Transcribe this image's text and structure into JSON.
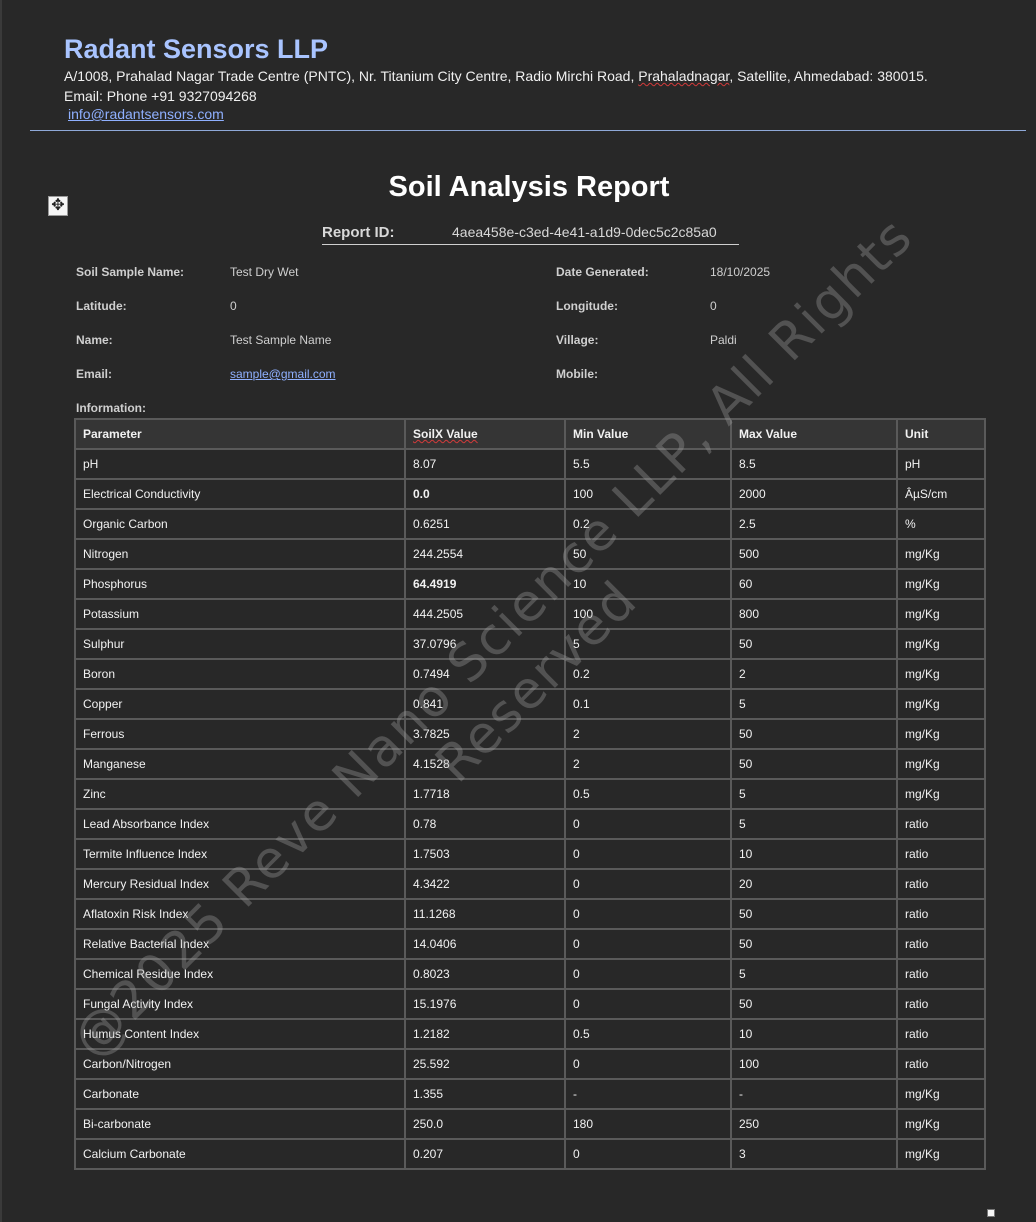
{
  "company": {
    "name": "Radant Sensors LLP",
    "address_pre": "A/1008, Prahalad Nagar Trade Centre (PNTC), Nr. Titanium City Centre, Radio Mirchi Road, ",
    "address_flagged": "Prahaladnagar",
    "address_post": ", Satellite, Ahmedabad: 380015.",
    "contact": "Email: Phone +91 9327094268",
    "email": "info@radantsensors.com"
  },
  "report": {
    "title": "Soil Analysis Report",
    "id_label": "Report ID:",
    "id_value": "4aea458e-c3ed-4e41-a1d9-0dec5c2c85a0"
  },
  "meta": {
    "sample_name_label": "Soil Sample Name:",
    "sample_name": "Test Dry Wet",
    "date_label": "Date Generated:",
    "date": "18/10/2025",
    "latitude_label": "Latitude:",
    "latitude": "0",
    "longitude_label": "Longitude:",
    "longitude": "0",
    "name_label": "Name:",
    "name": "Test Sample Name",
    "village_label": "Village:",
    "village": "Paldi",
    "email_label": "Email:",
    "email": "sample@gmail.com",
    "mobile_label": "Mobile:",
    "information_label": "Information:"
  },
  "table": {
    "headers": [
      "Parameter",
      "SoilX Value",
      "Min Value",
      "Max Value",
      "Unit"
    ],
    "rows": [
      {
        "parameter": "pH",
        "value": "8.07",
        "min": "5.5",
        "max": "8.5",
        "unit": "pH",
        "flag": false
      },
      {
        "parameter": "Electrical Conductivity",
        "value": "0.0",
        "min": "100",
        "max": "2000",
        "unit": "ÂµS/cm",
        "flag": true
      },
      {
        "parameter": "Organic Carbon",
        "value": "0.6251",
        "min": "0.2",
        "max": "2.5",
        "unit": "%",
        "flag": false
      },
      {
        "parameter": "Nitrogen",
        "value": "244.2554",
        "min": "50",
        "max": "500",
        "unit": "mg/Kg",
        "flag": false
      },
      {
        "parameter": "Phosphorus",
        "value": "64.4919",
        "min": "10",
        "max": "60",
        "unit": "mg/Kg",
        "flag": true
      },
      {
        "parameter": "Potassium",
        "value": "444.2505",
        "min": "100",
        "max": "800",
        "unit": "mg/Kg",
        "flag": false
      },
      {
        "parameter": "Sulphur",
        "value": "37.0796",
        "min": "5",
        "max": "50",
        "unit": "mg/Kg",
        "flag": false
      },
      {
        "parameter": "Boron",
        "value": "0.7494",
        "min": "0.2",
        "max": "2",
        "unit": "mg/Kg",
        "flag": false
      },
      {
        "parameter": "Copper",
        "value": "0.841",
        "min": "0.1",
        "max": "5",
        "unit": "mg/Kg",
        "flag": false
      },
      {
        "parameter": "Ferrous",
        "value": "3.7825",
        "min": "2",
        "max": "50",
        "unit": "mg/Kg",
        "flag": false
      },
      {
        "parameter": "Manganese",
        "value": "4.1528",
        "min": "2",
        "max": "50",
        "unit": "mg/Kg",
        "flag": false
      },
      {
        "parameter": "Zinc",
        "value": "1.7718",
        "min": "0.5",
        "max": "5",
        "unit": "mg/Kg",
        "flag": false
      },
      {
        "parameter": "Lead Absorbance Index",
        "value": "0.78",
        "min": "0",
        "max": "5",
        "unit": "ratio",
        "flag": false
      },
      {
        "parameter": "Termite Influence Index",
        "value": "1.7503",
        "min": "0",
        "max": "10",
        "unit": "ratio",
        "flag": false
      },
      {
        "parameter": "Mercury Residual Index",
        "value": "4.3422",
        "min": "0",
        "max": "20",
        "unit": "ratio",
        "flag": false
      },
      {
        "parameter": "Aflatoxin Risk Index",
        "value": "11.1268",
        "min": "0",
        "max": "50",
        "unit": "ratio",
        "flag": false
      },
      {
        "parameter": "Relative Bacterial Index",
        "value": "14.0406",
        "min": "0",
        "max": "50",
        "unit": "ratio",
        "flag": false
      },
      {
        "parameter": "Chemical Residue Index",
        "value": "0.8023",
        "min": "0",
        "max": "5",
        "unit": "ratio",
        "flag": false
      },
      {
        "parameter": "Fungal Activity Index",
        "value": "15.1976",
        "min": "0",
        "max": "50",
        "unit": "ratio",
        "flag": false
      },
      {
        "parameter": "Humus Content Index",
        "value": "1.2182",
        "min": "0.5",
        "max": "10",
        "unit": "ratio",
        "flag": false
      },
      {
        "parameter": "Carbon/Nitrogen",
        "value": "25.592",
        "min": "0",
        "max": "100",
        "unit": "ratio",
        "flag": false
      },
      {
        "parameter": "Carbonate",
        "value": "1.355",
        "min": "-",
        "max": "-",
        "unit": "mg/Kg",
        "flag": false
      },
      {
        "parameter": "Bi-carbonate",
        "value": "250.0",
        "min": "180",
        "max": "250",
        "unit": "mg/Kg",
        "flag": false
      },
      {
        "parameter": "Calcium Carbonate",
        "value": "0.207",
        "min": "0",
        "max": "3",
        "unit": "mg/Kg",
        "flag": false
      }
    ]
  },
  "watermark": {
    "line1": "@2025 Reve Nano Science LLP, All Rights",
    "line2": "Reserved"
  },
  "colors": {
    "background": "#282828",
    "company_name": "#a9c4ff",
    "link": "#8fb0ff",
    "flag": "#ff4f4f"
  }
}
